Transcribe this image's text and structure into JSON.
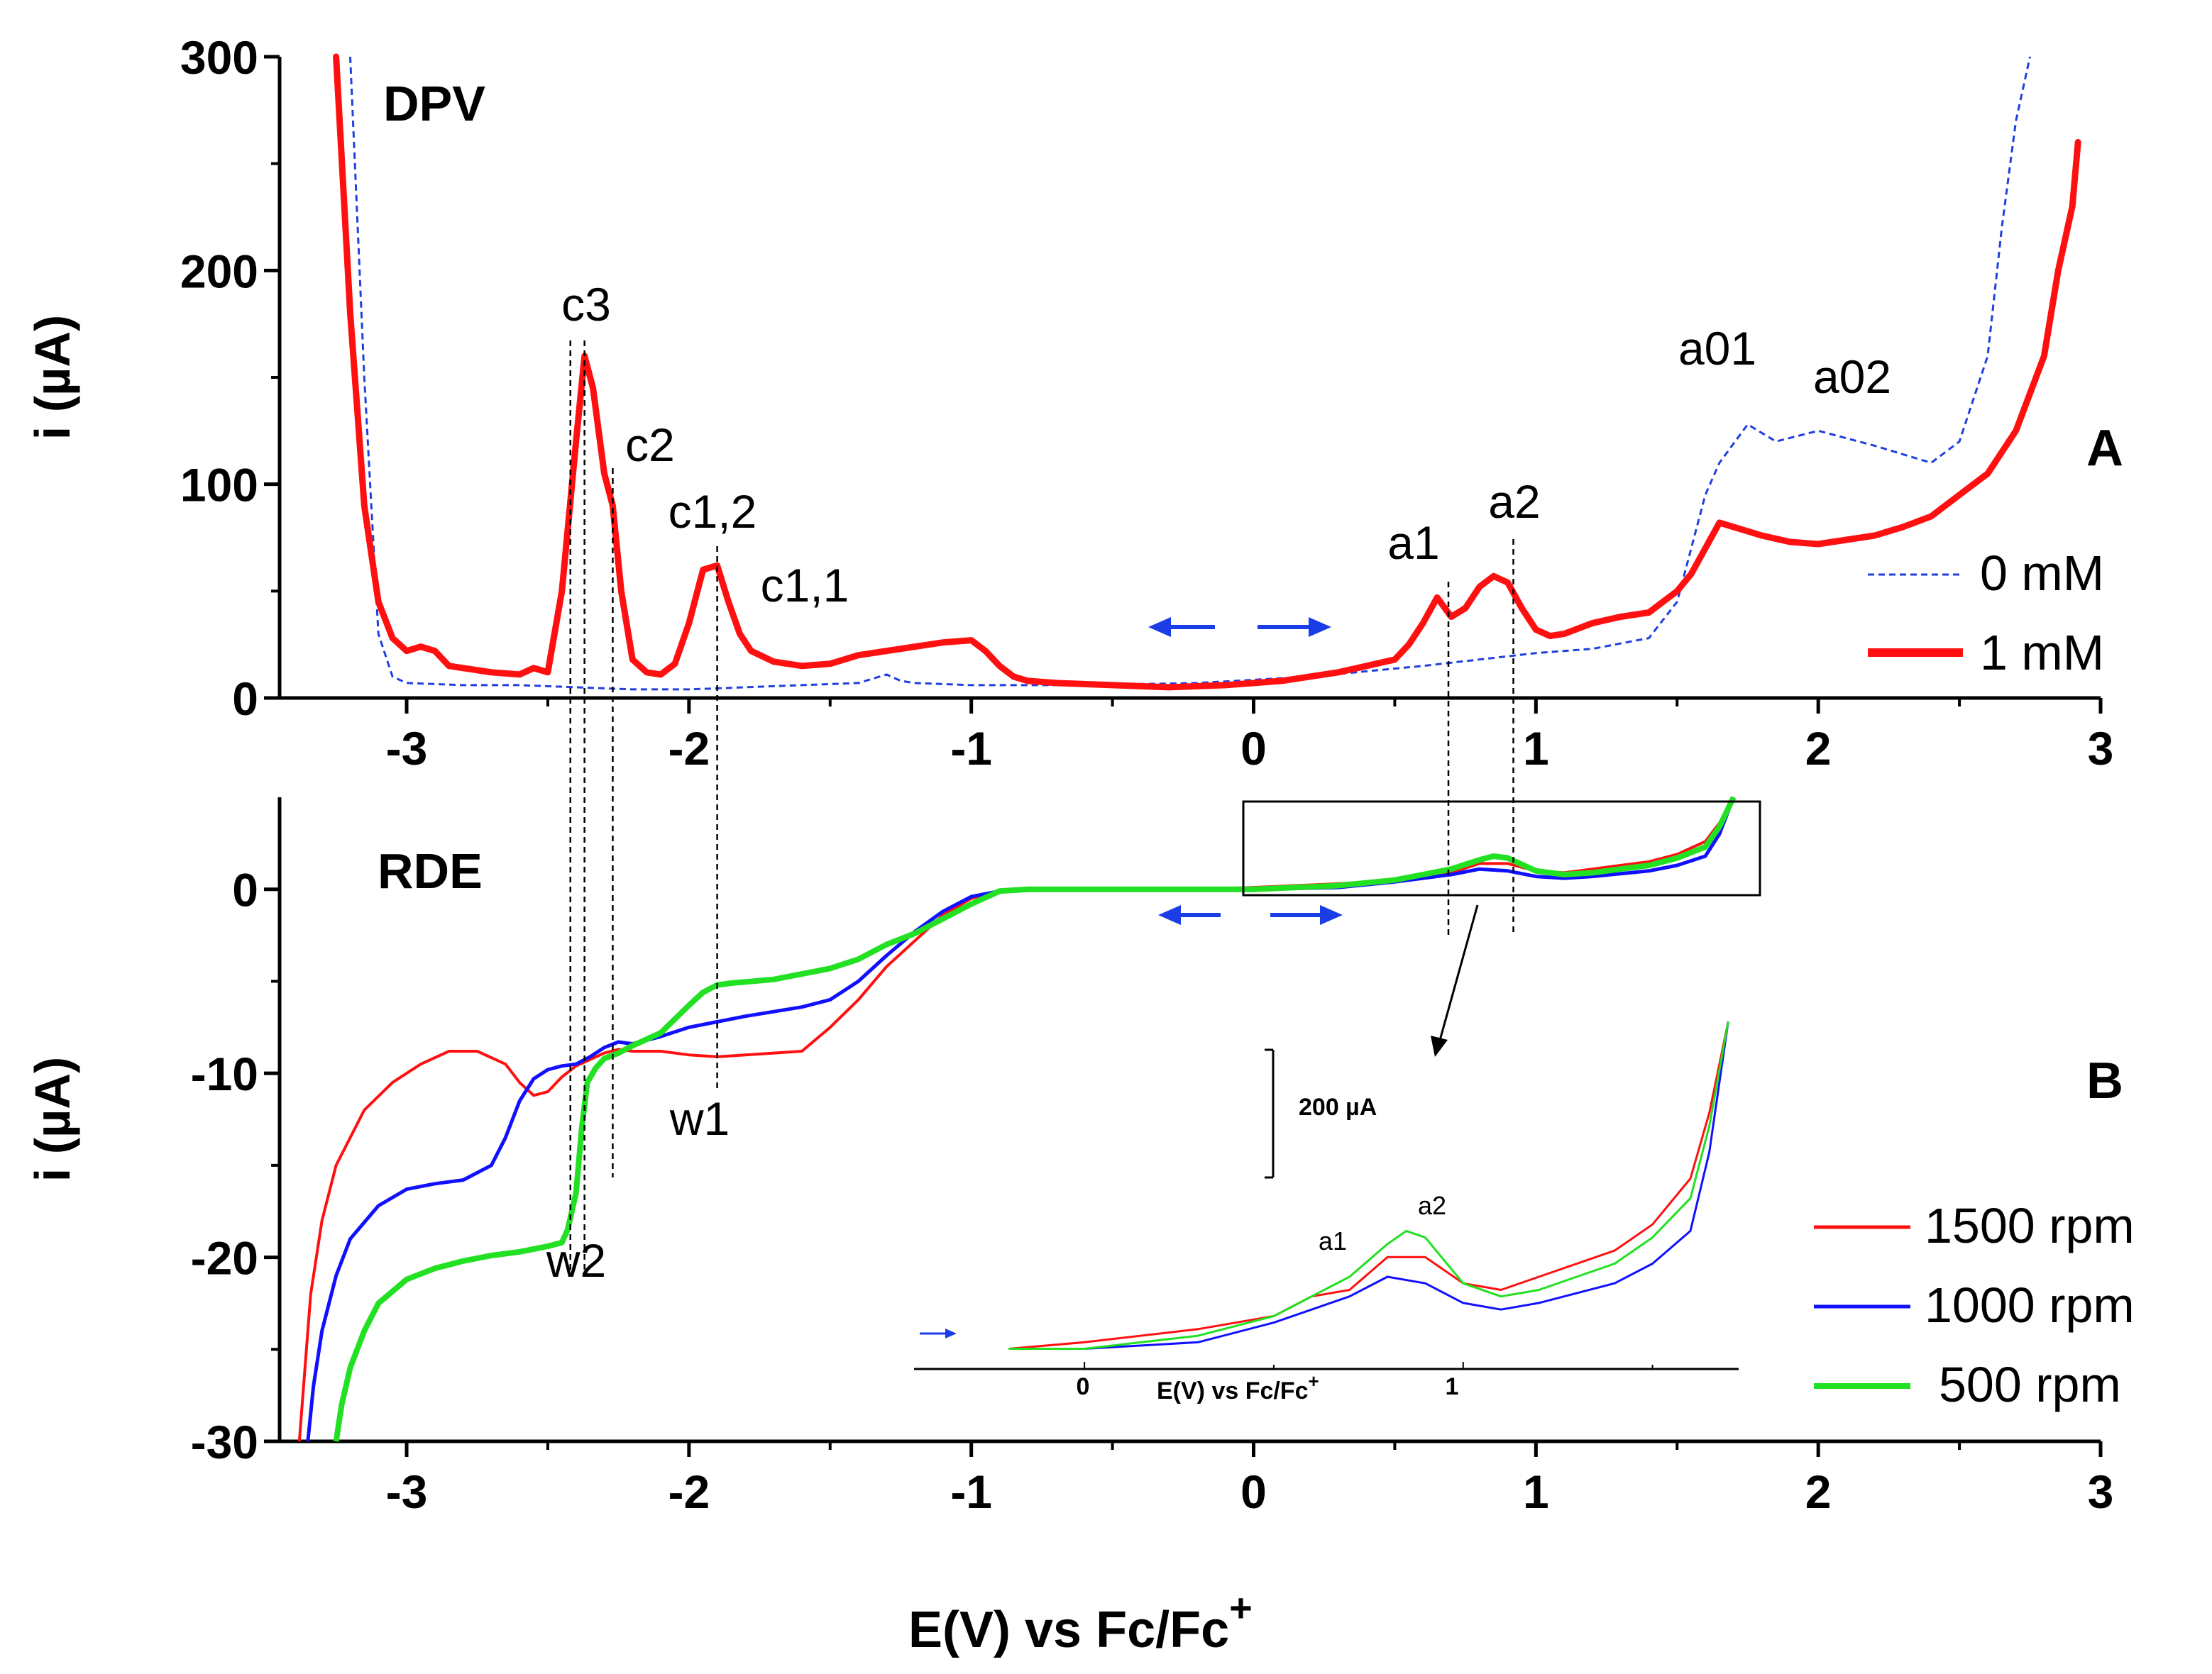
{
  "chart_data": [
    {
      "panel": "A",
      "type": "line",
      "title": "DPV",
      "panel_letter": "A",
      "xlabel": "",
      "ylabel": "i (µA)",
      "xlim": [
        -3.45,
        3.0
      ],
      "ylim": [
        0,
        300
      ],
      "xticks": [
        "-3",
        "-2",
        "-1",
        "0",
        "1",
        "2",
        "3"
      ],
      "yticks": [
        "0",
        "100",
        "200",
        "300"
      ],
      "series": [
        {
          "name": "0 mM",
          "color": "#1f3fe0",
          "style": "dashed",
          "x": [
            -3.2,
            -3.15,
            -3.1,
            -3.05,
            -3.0,
            -2.8,
            -2.6,
            -2.4,
            -2.2,
            -2.0,
            -1.8,
            -1.6,
            -1.4,
            -1.3,
            -1.25,
            -1.2,
            -1.0,
            -0.6,
            -0.2,
            0.2,
            0.6,
            1.0,
            1.2,
            1.4,
            1.5,
            1.6,
            1.65,
            1.75,
            1.85,
            2.0,
            2.2,
            2.4,
            2.5,
            2.6,
            2.65,
            2.7,
            2.75
          ],
          "y": [
            300,
            150,
            30,
            10,
            7,
            6,
            6,
            5,
            4,
            4,
            5,
            6,
            7,
            11,
            8,
            7,
            6,
            6,
            7,
            10,
            15,
            21,
            23,
            28,
            45,
            95,
            110,
            128,
            120,
            125,
            118,
            110,
            120,
            160,
            220,
            270,
            300
          ]
        },
        {
          "name": "1 mM",
          "color": "#ff1010",
          "style": "solid",
          "x": [
            -3.25,
            -3.2,
            -3.15,
            -3.1,
            -3.05,
            -3.0,
            -2.95,
            -2.9,
            -2.85,
            -2.7,
            -2.6,
            -2.55,
            -2.5,
            -2.45,
            -2.4,
            -2.37,
            -2.34,
            -2.3,
            -2.27,
            -2.24,
            -2.2,
            -2.15,
            -2.1,
            -2.05,
            -2.0,
            -1.95,
            -1.9,
            -1.86,
            -1.82,
            -1.78,
            -1.7,
            -1.6,
            -1.5,
            -1.4,
            -1.3,
            -1.2,
            -1.1,
            -1.0,
            -0.95,
            -0.9,
            -0.85,
            -0.8,
            -0.7,
            -0.5,
            -0.3,
            -0.1,
            0.1,
            0.3,
            0.5,
            0.55,
            0.6,
            0.65,
            0.7,
            0.75,
            0.8,
            0.85,
            0.9,
            0.95,
            1.0,
            1.05,
            1.1,
            1.2,
            1.3,
            1.4,
            1.5,
            1.55,
            1.6,
            1.65,
            1.7,
            1.8,
            1.9,
            2.0,
            2.1,
            2.2,
            2.3,
            2.4,
            2.5,
            2.6,
            2.7,
            2.8,
            2.85,
            2.9,
            2.92
          ],
          "y": [
            300,
            180,
            90,
            45,
            28,
            22,
            24,
            22,
            15,
            12,
            11,
            14,
            12,
            50,
            120,
            160,
            145,
            105,
            90,
            50,
            18,
            12,
            11,
            16,
            35,
            60,
            62,
            45,
            30,
            22,
            17,
            15,
            16,
            20,
            22,
            24,
            26,
            27,
            22,
            15,
            10,
            8,
            7,
            6,
            5,
            6,
            8,
            12,
            18,
            25,
            35,
            47,
            38,
            42,
            52,
            57,
            54,
            42,
            32,
            29,
            30,
            35,
            38,
            40,
            50,
            58,
            70,
            82,
            80,
            76,
            73,
            72,
            74,
            76,
            80,
            85,
            95,
            105,
            125,
            160,
            200,
            230,
            260
          ]
        }
      ],
      "annotations": [
        "c3",
        "c2",
        "c1,2",
        "c1,1",
        "a1",
        "a2",
        "a01",
        "a02"
      ],
      "legend_position": "bottom-right"
    },
    {
      "panel": "B",
      "type": "line",
      "title": "RDE",
      "panel_letter": "B",
      "xlabel": "E(V) vs Fc/Fc",
      "xlabel_superscript": "+",
      "ylabel": "i (µA)",
      "xlim": [
        -3.45,
        3.0
      ],
      "ylim": [
        -30,
        5
      ],
      "xticks": [
        "-3",
        "-2",
        "-1",
        "0",
        "1",
        "2",
        "3"
      ],
      "yticks": [
        "-30",
        "-20",
        "-10",
        "0"
      ],
      "series": [
        {
          "name": "1500 rpm",
          "color": "#ff1010",
          "x": [
            -3.38,
            -3.36,
            -3.34,
            -3.3,
            -3.25,
            -3.15,
            -3.05,
            -2.95,
            -2.85,
            -2.75,
            -2.65,
            -2.6,
            -2.55,
            -2.5,
            -2.45,
            -2.4,
            -2.3,
            -2.25,
            -2.2,
            -2.1,
            -2.0,
            -1.9,
            -1.8,
            -1.6,
            -1.5,
            -1.4,
            -1.3,
            -1.2,
            -1.1,
            -1.0,
            -0.9,
            -0.8,
            -0.5,
            -0.2,
            0.0,
            0.3,
            0.5,
            0.6,
            0.7,
            0.8,
            0.9,
            1.0,
            1.1,
            1.2,
            1.4,
            1.5,
            1.6,
            1.65,
            1.7
          ],
          "y": [
            -30,
            -26,
            -22,
            -18,
            -15,
            -12,
            -10.5,
            -9.5,
            -8.8,
            -8.8,
            -9.5,
            -10.5,
            -11.2,
            -11,
            -10.2,
            -9.6,
            -8.9,
            -8.7,
            -8.8,
            -8.8,
            -9.0,
            -9.1,
            -9.0,
            -8.8,
            -7.5,
            -6.0,
            -4.2,
            -2.8,
            -1.4,
            -0.5,
            -0.1,
            0.0,
            0.0,
            0.0,
            0.1,
            0.3,
            0.5,
            0.8,
            0.9,
            1.4,
            1.4,
            1.0,
            0.9,
            1.1,
            1.5,
            1.9,
            2.6,
            3.6,
            5.0
          ]
        },
        {
          "name": "1000 rpm",
          "color": "#1010ff",
          "x": [
            -3.35,
            -3.33,
            -3.3,
            -3.25,
            -3.2,
            -3.1,
            -3.0,
            -2.9,
            -2.8,
            -2.7,
            -2.65,
            -2.6,
            -2.55,
            -2.5,
            -2.45,
            -2.4,
            -2.35,
            -2.3,
            -2.25,
            -2.2,
            -2.1,
            -2.0,
            -1.9,
            -1.8,
            -1.6,
            -1.5,
            -1.4,
            -1.3,
            -1.2,
            -1.1,
            -1.0,
            -0.9,
            -0.8,
            -0.5,
            -0.2,
            0.0,
            0.3,
            0.5,
            0.6,
            0.7,
            0.8,
            0.9,
            1.0,
            1.1,
            1.2,
            1.4,
            1.5,
            1.6,
            1.65,
            1.7
          ],
          "y": [
            -30,
            -27,
            -24,
            -21,
            -19,
            -17.2,
            -16.3,
            -16.0,
            -15.8,
            -15.0,
            -13.5,
            -11.5,
            -10.3,
            -9.8,
            -9.6,
            -9.5,
            -9.1,
            -8.6,
            -8.3,
            -8.4,
            -8.0,
            -7.5,
            -7.2,
            -6.9,
            -6.4,
            -6.0,
            -5.0,
            -3.6,
            -2.3,
            -1.2,
            -0.4,
            -0.1,
            0.0,
            0.0,
            0.0,
            0.0,
            0.1,
            0.4,
            0.6,
            0.8,
            1.1,
            1.0,
            0.7,
            0.6,
            0.7,
            1.0,
            1.3,
            1.8,
            3.0,
            5.0
          ]
        },
        {
          "name": "500 rpm",
          "color": "#22e022",
          "x": [
            -3.25,
            -3.23,
            -3.2,
            -3.15,
            -3.1,
            -3.0,
            -2.9,
            -2.8,
            -2.7,
            -2.6,
            -2.5,
            -2.45,
            -2.43,
            -2.4,
            -2.38,
            -2.36,
            -2.33,
            -2.3,
            -2.25,
            -2.2,
            -2.1,
            -2.0,
            -1.95,
            -1.9,
            -1.85,
            -1.7,
            -1.6,
            -1.5,
            -1.4,
            -1.3,
            -1.2,
            -1.1,
            -1.0,
            -0.9,
            -0.8,
            -0.5,
            -0.2,
            0.0,
            0.3,
            0.5,
            0.6,
            0.7,
            0.8,
            0.85,
            0.9,
            1.0,
            1.1,
            1.2,
            1.4,
            1.5,
            1.6,
            1.65,
            1.7
          ],
          "y": [
            -30,
            -28,
            -26,
            -24,
            -22.5,
            -21.2,
            -20.6,
            -20.2,
            -19.9,
            -19.7,
            -19.4,
            -19.2,
            -18.5,
            -16.5,
            -13.0,
            -10.5,
            -9.7,
            -9.2,
            -8.9,
            -8.5,
            -7.8,
            -6.3,
            -5.6,
            -5.2,
            -5.1,
            -4.9,
            -4.6,
            -4.3,
            -3.8,
            -3.0,
            -2.4,
            -1.6,
            -0.8,
            -0.1,
            0.0,
            0.0,
            0.0,
            0.0,
            0.2,
            0.5,
            0.8,
            1.1,
            1.6,
            1.8,
            1.7,
            1.0,
            0.8,
            0.9,
            1.3,
            1.7,
            2.3,
            3.4,
            5.0
          ]
        }
      ],
      "annotations": [
        "w1",
        "w2"
      ],
      "legend_position": "bottom-right",
      "inset": {
        "xlabel": "E(V) vs Fc/Fc",
        "xlabel_superscript": "+",
        "xticks": [
          "0",
          "1"
        ],
        "scale_bar_label": "200  µA",
        "annotations": [
          "a1",
          "a2"
        ]
      }
    }
  ]
}
